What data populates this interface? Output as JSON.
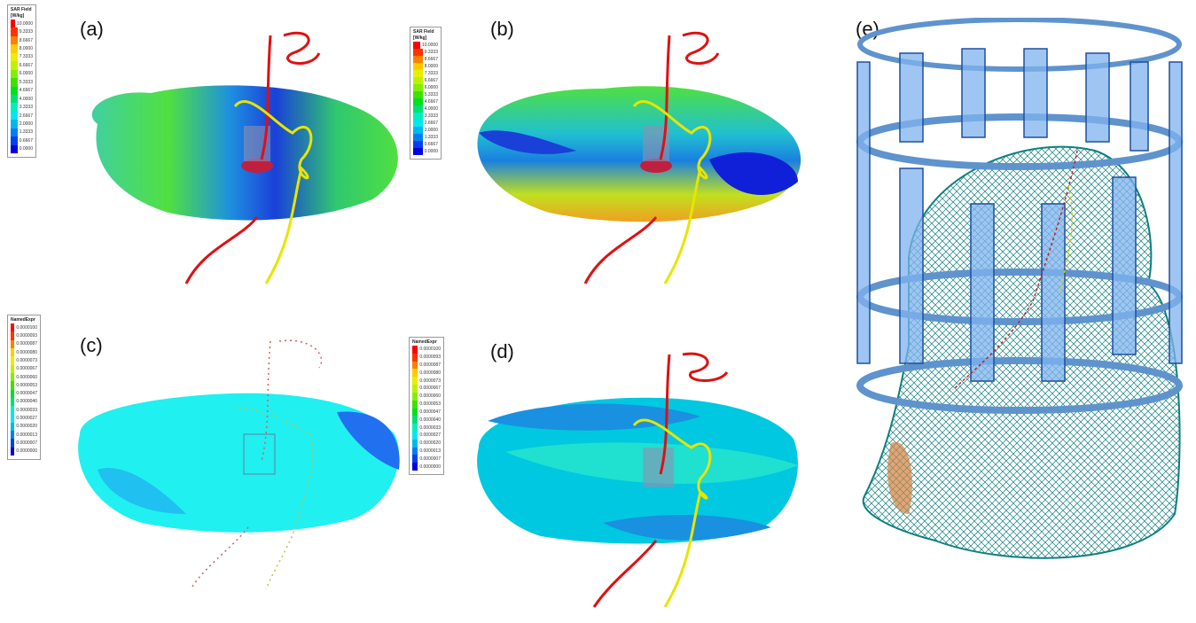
{
  "panels": {
    "a": {
      "label": "(a)"
    },
    "b": {
      "label": "(b)"
    },
    "c": {
      "label": "(c)"
    },
    "d": {
      "label": "(d)"
    },
    "e": {
      "label": "(e)"
    }
  },
  "legend_sar": {
    "title_line1": "SAR Field",
    "title_line2": "[W/kg]",
    "values": [
      "10.0000",
      "9.3333",
      "8.6667",
      "8.0000",
      "7.3333",
      "6.6667",
      "6.0000",
      "5.3333",
      "4.6667",
      "4.0000",
      "3.3333",
      "2.6667",
      "2.0000",
      "1.3333",
      "0.6667",
      "0.0000"
    ]
  },
  "legend_expr": {
    "title": "NamedExpr",
    "values": [
      "0.0000100",
      "0.0000093",
      "0.0000087",
      "0.0000080",
      "0.0000073",
      "0.0000067",
      "0.0000060",
      "0.0000053",
      "0.0000047",
      "0.0000040",
      "0.0000033",
      "0.0000027",
      "0.0000020",
      "0.0000013",
      "0.0000007",
      "0.0000000"
    ]
  },
  "colormap": [
    "#ff0000",
    "#ff3300",
    "#ff8000",
    "#ffcc00",
    "#e6f000",
    "#c0f000",
    "#80f000",
    "#40e000",
    "#00e020",
    "#00e070",
    "#00f0c0",
    "#00e8f0",
    "#00b8f0",
    "#0080f0",
    "#0040f0",
    "#0000e0"
  ],
  "colors": {
    "wire_red": "#e01010",
    "wire_yellow": "#e6e600",
    "mesh": "#0f7f7f",
    "coil": "#7fb3ee",
    "coil_edge": "#1f4f9f"
  }
}
